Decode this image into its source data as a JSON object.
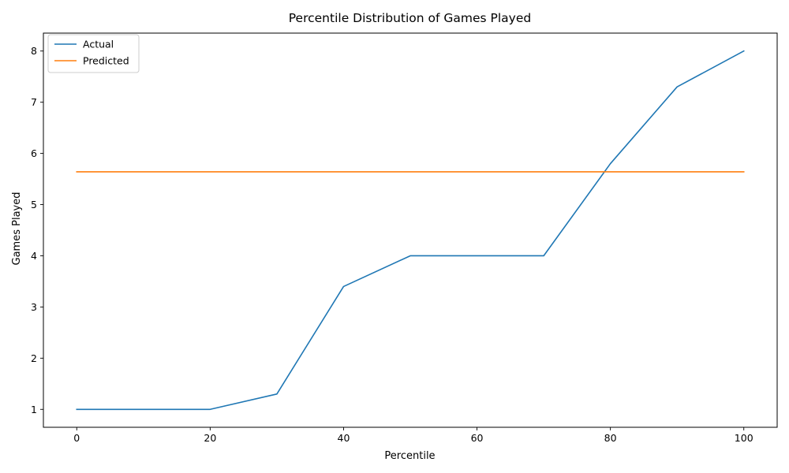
{
  "chart_data": {
    "type": "line",
    "title": "Percentile Distribution of Games Played",
    "xlabel": "Percentile",
    "ylabel": "Games Played",
    "xlim": [
      -5,
      105
    ],
    "ylim": [
      0.65,
      8.35
    ],
    "xticks": [
      0,
      20,
      40,
      60,
      80,
      100
    ],
    "yticks": [
      1,
      2,
      3,
      4,
      5,
      6,
      7,
      8
    ],
    "grid": false,
    "legend_position": "upper left",
    "x": [
      0,
      10,
      20,
      30,
      40,
      50,
      60,
      70,
      80,
      90,
      100
    ],
    "series": [
      {
        "name": "Actual",
        "color": "#1f77b4",
        "values": [
          1,
          1,
          1,
          1.3,
          3.4,
          4,
          4,
          4,
          5.8,
          7.3,
          8
        ]
      },
      {
        "name": "Predicted",
        "color": "#ff7f0e",
        "values": [
          5.64,
          5.64,
          5.64,
          5.64,
          5.64,
          5.64,
          5.64,
          5.64,
          5.64,
          5.64,
          5.64
        ]
      }
    ]
  }
}
